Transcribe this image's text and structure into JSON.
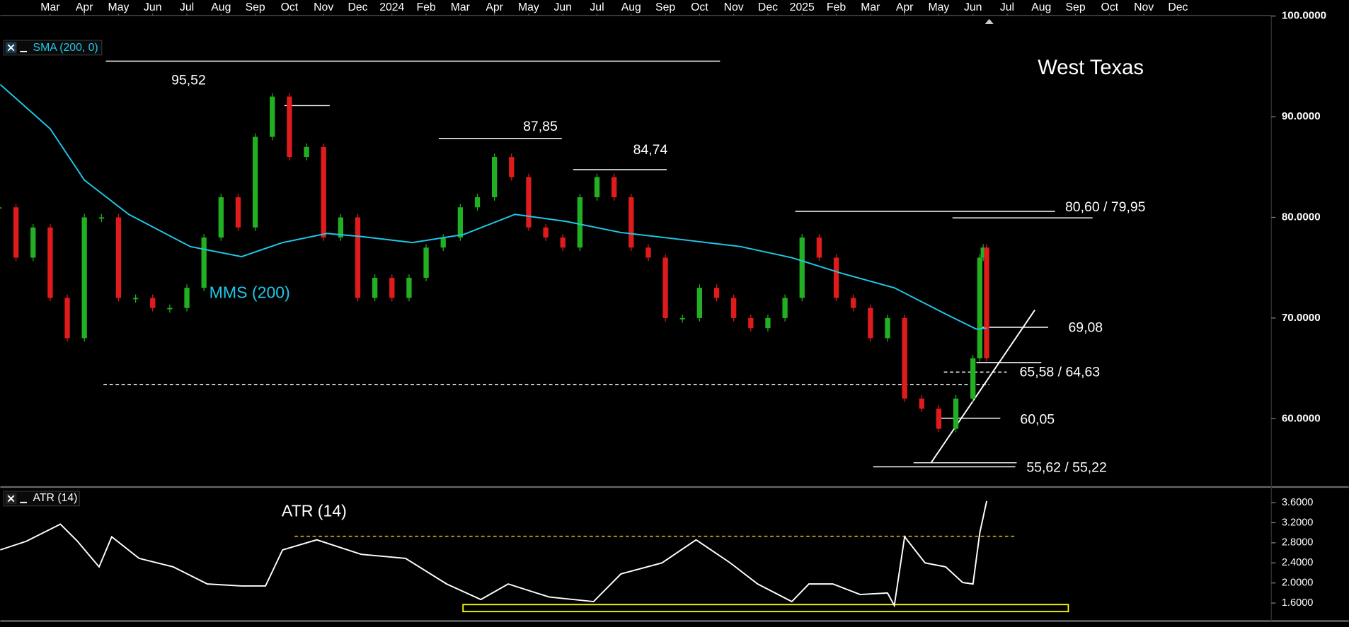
{
  "title": "West Texas",
  "chart_data": [
    {
      "type": "candlestick",
      "indicator_label": "SMA (200, 0)",
      "xlim": [
        -1.46,
        35.73
      ],
      "ylim": [
        53.3,
        100.4
      ],
      "xticks": [
        {
          "value": 0,
          "label": "Mar"
        },
        {
          "value": 1,
          "label": "Apr"
        },
        {
          "value": 2,
          "label": "May"
        },
        {
          "value": 3,
          "label": "Jun"
        },
        {
          "value": 4,
          "label": "Jul"
        },
        {
          "value": 5,
          "label": "Aug"
        },
        {
          "value": 6,
          "label": "Sep"
        },
        {
          "value": 7,
          "label": "Oct"
        },
        {
          "value": 8,
          "label": "Nov"
        },
        {
          "value": 9,
          "label": "Dec"
        },
        {
          "value": 10,
          "label": "2024"
        },
        {
          "value": 11,
          "label": "Feb"
        },
        {
          "value": 12,
          "label": "Mar"
        },
        {
          "value": 13,
          "label": "Apr"
        },
        {
          "value": 14,
          "label": "May"
        },
        {
          "value": 15,
          "label": "Jun"
        },
        {
          "value": 16,
          "label": "Jul"
        },
        {
          "value": 17,
          "label": "Aug"
        },
        {
          "value": 18,
          "label": "Sep"
        },
        {
          "value": 19,
          "label": "Oct"
        },
        {
          "value": 20,
          "label": "Nov"
        },
        {
          "value": 21,
          "label": "Dec"
        },
        {
          "value": 22,
          "label": "2025"
        },
        {
          "value": 23,
          "label": "Feb"
        },
        {
          "value": 24,
          "label": "Mar"
        },
        {
          "value": 25,
          "label": "Apr"
        },
        {
          "value": 26,
          "label": "May"
        },
        {
          "value": 27,
          "label": "Jun"
        },
        {
          "value": 28,
          "label": "Jul"
        },
        {
          "value": 29,
          "label": "Aug"
        },
        {
          "value": 30,
          "label": "Sep"
        },
        {
          "value": 31,
          "label": "Oct"
        },
        {
          "value": 32,
          "label": "Nov"
        },
        {
          "value": 33,
          "label": "Dec"
        }
      ],
      "yticks": [
        {
          "value": 100,
          "label": "100.0000"
        },
        {
          "value": 90,
          "label": "90.0000"
        },
        {
          "value": 80,
          "label": "80.0000"
        },
        {
          "value": 70,
          "label": "70.0000"
        },
        {
          "value": 60,
          "label": "60.0000"
        }
      ],
      "up_color": "#22b022",
      "down_color": "#e01b1b",
      "series": [
        {
          "x": [
            -1.5,
            -1,
            -0.5,
            0,
            0.5,
            1,
            1.5,
            2,
            2.5,
            3,
            3.5,
            4,
            4.5,
            5,
            5.5,
            6,
            6.5,
            7,
            7.5,
            8,
            8.5,
            9,
            9.5,
            10,
            10.5,
            11,
            11.5,
            12,
            12.5,
            13,
            13.5,
            14,
            14.5,
            15,
            15.5,
            16,
            16.5,
            17,
            17.5,
            18,
            18.5,
            19,
            19.5,
            20,
            20.5,
            21,
            21.5,
            22,
            22.5,
            23,
            23.5,
            24,
            24.5,
            25,
            25.5,
            26,
            26.5,
            27,
            27.2,
            27.3,
            27.4
          ],
          "values": [
            81,
            76,
            79,
            72,
            68,
            80,
            80,
            72,
            72,
            71,
            71,
            73,
            78,
            82,
            79,
            88,
            92,
            86,
            87,
            78,
            80,
            72,
            74,
            72,
            74,
            77,
            78,
            81,
            82,
            86,
            84,
            79,
            78,
            77,
            82,
            84,
            82,
            77,
            76,
            70,
            70,
            73,
            72,
            70,
            69,
            70,
            72,
            78,
            76,
            72,
            71,
            68,
            70,
            62,
            61,
            59,
            62,
            66,
            76,
            77,
            66
          ]
        },
        {
          "name": "MMS (200)",
          "color": "#1ec8e8",
          "x": [
            -1.46,
            0,
            1,
            2.3,
            4.1,
            5.6,
            6.8,
            8.1,
            9.1,
            10.6,
            12.1,
            13.6,
            15.1,
            16.7,
            18.7,
            20.2,
            21.7,
            23.2,
            24.7,
            26.2,
            27.1,
            27.4
          ],
          "values": [
            93.2,
            88.8,
            83.7,
            80.3,
            77.1,
            76.1,
            77.5,
            78.4,
            78.1,
            77.5,
            78.3,
            80.3,
            79.6,
            78.5,
            77.7,
            77.1,
            76.0,
            74.4,
            73.0,
            70.4,
            68.9,
            69.0
          ]
        }
      ],
      "levels": [
        {
          "label": "95,52",
          "values": [
            95.52
          ],
          "from": [
            1.63
          ],
          "to": [
            19.6
          ]
        },
        {
          "values": [
            91.1
          ],
          "from": [
            6.85
          ],
          "to": [
            8.18
          ]
        },
        {
          "label": "87,85",
          "values": [
            87.85
          ],
          "from": [
            11.37
          ],
          "to": [
            14.97
          ]
        },
        {
          "label": "84,74",
          "values": [
            84.74
          ],
          "from": [
            15.3
          ],
          "to": [
            18.04
          ]
        },
        {
          "label": "80,60 / 79,95",
          "values": [
            80.6,
            79.95
          ],
          "from": [
            21.8,
            26.4
          ],
          "to": [
            29.4,
            30.5
          ]
        },
        {
          "label": "69,08",
          "values": [
            69.08
          ],
          "from": [
            27.2
          ],
          "to": [
            29.2
          ]
        },
        {
          "label": "65,58 / 64,63",
          "values": [
            65.58,
            64.63
          ],
          "from": [
            27.1,
            26.15
          ],
          "to": [
            29.0,
            27.99
          ],
          "dashed": [
            false,
            true
          ]
        },
        {
          "label": "60,05",
          "values": [
            60.05
          ],
          "from": [
            25.92
          ],
          "to": [
            27.8
          ]
        },
        {
          "label": "55,62 / 55,22",
          "values": [
            55.62,
            55.22
          ],
          "from": [
            25.26,
            24.08
          ],
          "to": [
            28.28,
            28.24
          ]
        },
        {
          "values": [
            63.4
          ],
          "from": [
            1.56
          ],
          "to": [
            27.48
          ],
          "dashed": [
            true
          ]
        }
      ],
      "level_color": "#ffffff",
      "trendline": {
        "x": [
          25.77,
          28.81
        ],
        "y": [
          55.6,
          70.8
        ]
      }
    },
    {
      "type": "line",
      "indicator_label": "ATR (14)",
      "xlim": [
        -1.46,
        35.73
      ],
      "ylim": [
        1.26,
        3.86
      ],
      "yticks": [
        {
          "value": 3.6,
          "label": "3.6000"
        },
        {
          "value": 3.2,
          "label": "3.2000"
        },
        {
          "value": 2.8,
          "label": "2.8000"
        },
        {
          "value": 2.4,
          "label": "2.4000"
        },
        {
          "value": 2.0,
          "label": "2.0000"
        },
        {
          "value": 1.6,
          "label": "1.6000"
        }
      ],
      "series": [
        {
          "name": "ATR (14)",
          "color": "#ffffff",
          "x": [
            -1.46,
            -0.7,
            0.3,
            0.8,
            1.43,
            1.8,
            2.6,
            3.6,
            4.6,
            5.6,
            6.3,
            6.8,
            7.8,
            9.1,
            10.4,
            11.6,
            12.6,
            13.4,
            14.6,
            15.9,
            16.7,
            17.9,
            18.9,
            19.9,
            20.7,
            21.7,
            22.2,
            22.9,
            23.7,
            24.5,
            24.7,
            25.0,
            25.6,
            26.2,
            26.7,
            27.0,
            27.2,
            27.4
          ],
          "values": [
            2.66,
            2.83,
            3.17,
            2.83,
            2.32,
            2.92,
            2.49,
            2.32,
            1.98,
            1.94,
            1.94,
            2.66,
            2.86,
            2.57,
            2.49,
            1.98,
            1.67,
            1.98,
            1.72,
            1.63,
            2.18,
            2.4,
            2.86,
            2.4,
            1.98,
            1.63,
            1.98,
            1.98,
            1.77,
            1.8,
            1.55,
            2.92,
            2.4,
            2.32,
            2.01,
            1.98,
            3.0,
            3.63
          ]
        }
      ],
      "levels": [
        {
          "values": [
            2.93
          ],
          "from": [
            7.15
          ],
          "to": [
            28.23
          ],
          "dashed": [
            true
          ]
        }
      ],
      "level_color": "#e0c020",
      "box": {
        "x": [
          12.08,
          29.79
        ],
        "y": [
          1.43,
          1.57
        ],
        "color": "#ffff00"
      }
    }
  ]
}
